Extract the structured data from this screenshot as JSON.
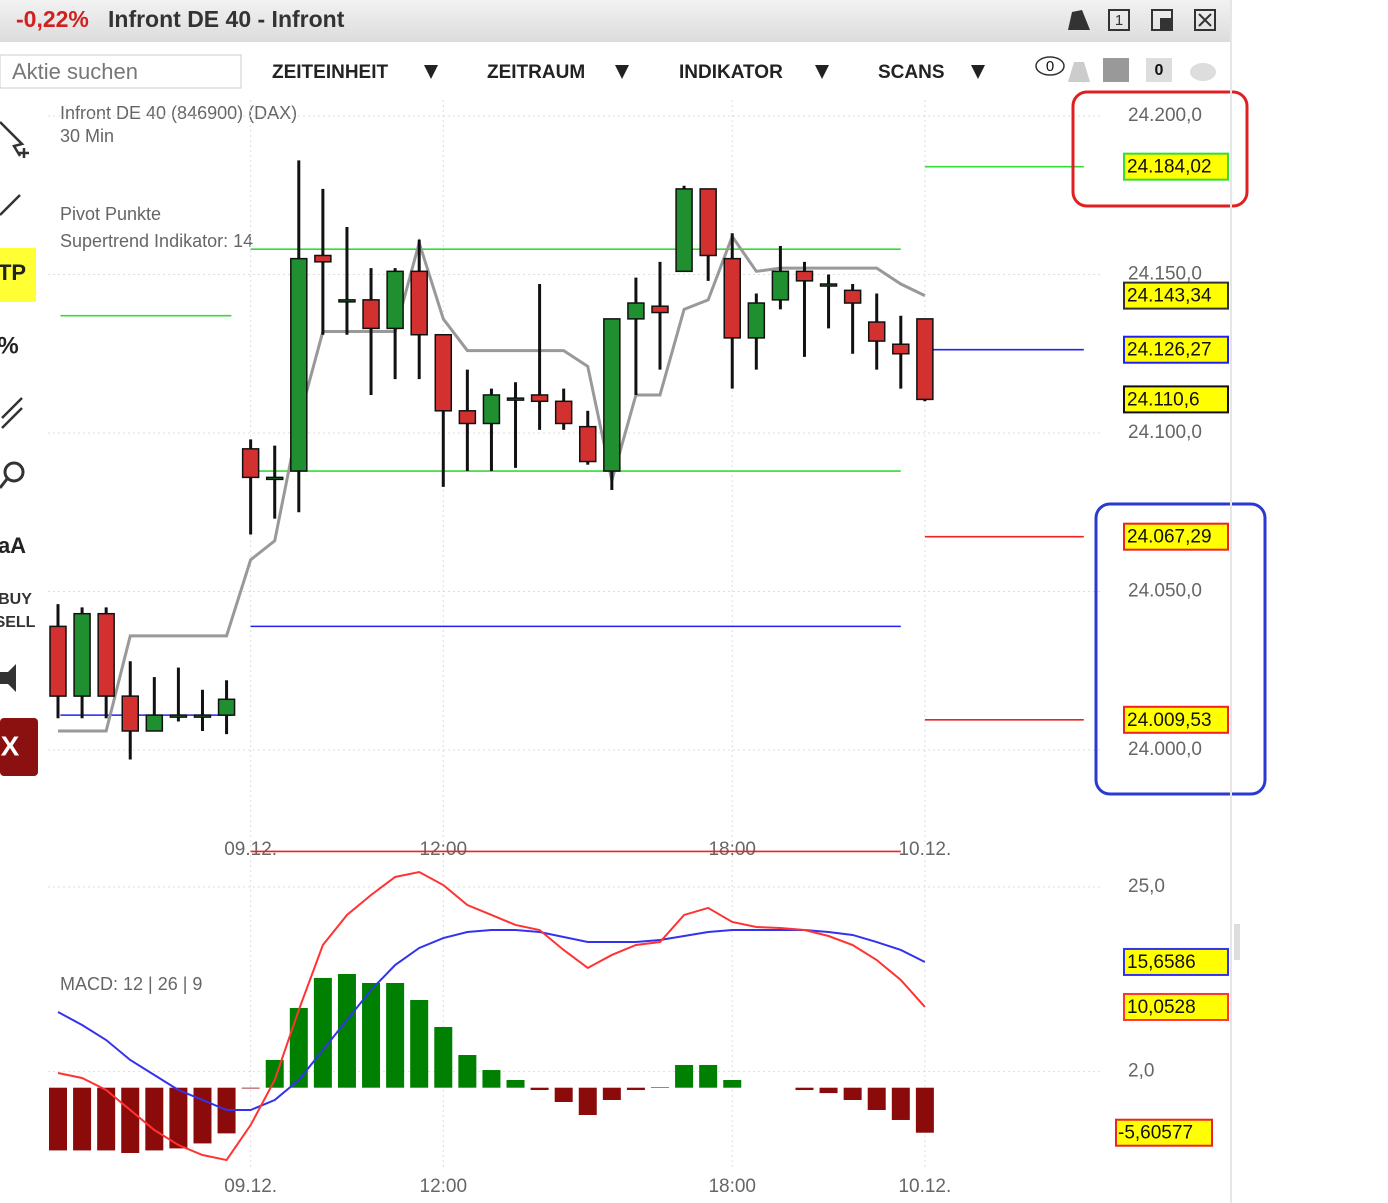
{
  "header": {
    "change": "-0,22%",
    "title": "Infront DE 40 - Infront",
    "window_icon": "1"
  },
  "toolbar": {
    "search_placeholder": "Aktie suchen",
    "menus": [
      "ZEITEINHEIT",
      "ZEITRAUM",
      "INDIKATOR",
      "SCANS"
    ],
    "badges": [
      "0",
      "0"
    ]
  },
  "side_tools": [
    "TP",
    "%",
    "aA",
    "BUY",
    "SELL",
    "X"
  ],
  "legend": {
    "instrument": "Infront DE 40 (846900) (DAX)",
    "interval": "30 Min",
    "pivot": "Pivot Punkte",
    "supertrend": "Supertrend Indikator: 14",
    "macd": "MACD: 12 | 26 | 9"
  },
  "x_labels": [
    {
      "index": 8,
      "label": "09.12."
    },
    {
      "index": 16,
      "label": "12:00"
    },
    {
      "index": 28,
      "label": "18:00"
    },
    {
      "index": 36,
      "label": "10.12."
    }
  ],
  "price_axis": {
    "yticks": [
      {
        "value": 24200,
        "label": "24.200,0"
      },
      {
        "value": 24150,
        "label": "24.150,0"
      },
      {
        "value": 24100,
        "label": "24.100,0"
      },
      {
        "value": 24050,
        "label": "24.050,0"
      },
      {
        "value": 24000,
        "label": "24.000,0"
      }
    ],
    "up_color": "#1f8f2f",
    "down_color": "#d33030"
  },
  "candles": [
    [
      24039,
      24046,
      24010,
      24017
    ],
    [
      24017,
      24045,
      24010,
      24043
    ],
    [
      24043,
      24045,
      24010,
      24017
    ],
    [
      24017,
      24028,
      23997,
      24006
    ],
    [
      24006,
      24023,
      24006,
      24011
    ],
    [
      24011,
      24026,
      24009,
      24011
    ],
    [
      24011,
      24019,
      24006,
      24011
    ],
    [
      24011,
      24022,
      24005,
      24016
    ],
    [
      24095,
      24098,
      24068,
      24086
    ],
    [
      24086,
      24096,
      24073,
      24086
    ],
    [
      24088,
      24186,
      24075,
      24155
    ],
    [
      24156,
      24177,
      24131,
      24154
    ],
    [
      24142,
      24165,
      24131,
      24142
    ],
    [
      24142,
      24152,
      24112,
      24133
    ],
    [
      24133,
      24152,
      24117,
      24151
    ],
    [
      24151,
      24161,
      24117,
      24131
    ],
    [
      24131,
      24131,
      24083,
      24107
    ],
    [
      24107,
      24120,
      24088,
      24103
    ],
    [
      24103,
      24114,
      24088,
      24112
    ],
    [
      24111,
      24116,
      24089,
      24111
    ],
    [
      24112,
      24147,
      24101,
      24110
    ],
    [
      24110,
      24114,
      24101,
      24103
    ],
    [
      24102,
      24107,
      24090,
      24091
    ],
    [
      24088,
      24136,
      24082,
      24136
    ],
    [
      24136,
      24149,
      24112,
      24141
    ],
    [
      24140,
      24154,
      24120,
      24138
    ],
    [
      24151,
      24178,
      24151,
      24177
    ],
    [
      24177,
      24177,
      24148,
      24156
    ],
    [
      24155,
      24163,
      24114,
      24130
    ],
    [
      24130,
      24144,
      24120,
      24141
    ],
    [
      24142,
      24159,
      24139,
      24151
    ],
    [
      24151,
      24154,
      24124,
      24148
    ],
    [
      24147,
      24150,
      24133,
      24147
    ],
    [
      24145,
      24147,
      24125,
      24141
    ],
    [
      24135,
      24144,
      24120,
      24129
    ],
    [
      24128,
      24137,
      24114,
      24125
    ],
    [
      24136,
      24136,
      24110,
      24110.6
    ]
  ],
  "last_close_label": "24.110,6",
  "supertrend": {
    "color": "#999999",
    "values_label": "24.143,34",
    "values": [
      24006,
      24006,
      24006,
      24036,
      24036,
      24036,
      24036,
      24036,
      24060,
      24066,
      24104,
      24132,
      24132,
      24132,
      24132,
      24160,
      24136,
      24126,
      24126,
      24126,
      24126,
      24126,
      24121,
      24085,
      24112,
      24112,
      24139,
      24142,
      24162,
      24151,
      24152,
      24152,
      24152,
      24152,
      24152,
      24147,
      24143.34
    ]
  },
  "pivots": [
    {
      "levels": [
        {
          "value": 24137,
          "color": "#33dd33"
        },
        {
          "value": 24011,
          "color": "#2222ee"
        }
      ]
    },
    {
      "levels": [
        {
          "value": 24158,
          "color": "#33dd33"
        },
        {
          "value": 24088,
          "color": "#33dd33"
        },
        {
          "value": 24039,
          "color": "#2222ee"
        },
        {
          "value": 23968,
          "color": "#ee2222"
        }
      ]
    },
    {
      "levels": [
        {
          "value": 24184.02,
          "label": "24.184,02",
          "color": "#33dd33"
        },
        {
          "value": 24126.27,
          "label": "24.126,27",
          "color": "#2222ee"
        },
        {
          "value": 24067.29,
          "label": "24.067,29",
          "color": "#ee2222"
        },
        {
          "value": 24009.53,
          "label": "24.009,53",
          "color": "#ee2222"
        }
      ]
    }
  ],
  "macd": {
    "yticks": [
      {
        "value": 25,
        "label": "25,0"
      },
      {
        "value": 2,
        "label": "2,0"
      }
    ],
    "line": {
      "color": "#3333ee",
      "label": "15,6586",
      "values": [
        9.43,
        7.81,
        5.94,
        3.45,
        1.58,
        -0.29,
        -1.53,
        -2.78,
        -2.78,
        -1.53,
        0.96,
        4.69,
        8.43,
        12.17,
        15.28,
        17.4,
        18.64,
        19.39,
        19.64,
        19.64,
        19.39,
        18.77,
        18.14,
        18.14,
        18.14,
        18.39,
        18.89,
        19.39,
        19.64,
        19.64,
        19.64,
        19.64,
        19.39,
        19.02,
        18.14,
        17.15,
        15.6586
      ]
    },
    "signal": {
      "color": "#ff3333",
      "label": "10,0528",
      "values": [
        1.83,
        1.21,
        -0.29,
        -2.78,
        -5.27,
        -7.14,
        -8.38,
        -9.01,
        -4.65,
        0.96,
        9.68,
        17.77,
        21.51,
        24.0,
        26.24,
        26.86,
        25.24,
        22.75,
        21.51,
        20.27,
        19.64,
        17.15,
        14.91,
        16.53,
        17.77,
        18.14,
        21.51,
        22.39,
        20.64,
        20.01,
        19.89,
        19.64,
        18.89,
        17.77,
        15.9,
        13.41,
        10.0528
      ]
    },
    "histogram": {
      "up_color": "#008000",
      "down_color": "#8b0a0a",
      "label": "-5,60577",
      "values": [
        -7.81,
        -7.81,
        -7.81,
        -8.13,
        -7.81,
        -7.56,
        -6.94,
        -5.69,
        -0.1,
        3.45,
        9.93,
        13.67,
        14.16,
        13.04,
        13.04,
        10.92,
        7.56,
        4.07,
        2.2,
        0.96,
        -0.29,
        -1.78,
        -3.4,
        -1.53,
        -0.29,
        0.08,
        2.83,
        2.83,
        0.96,
        0,
        0,
        -0.29,
        -0.67,
        -1.53,
        -2.78,
        -4.02,
        -5.60577
      ]
    }
  }
}
